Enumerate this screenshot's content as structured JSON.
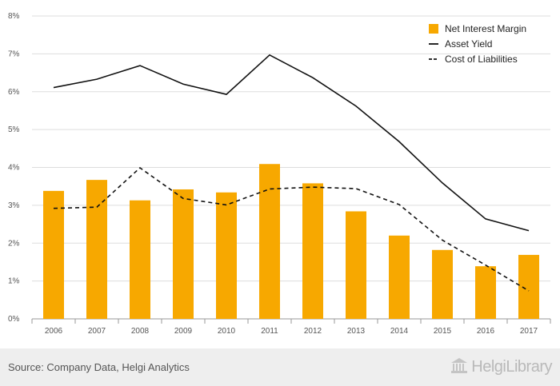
{
  "chart_data": {
    "type": "bar",
    "categories": [
      "2006",
      "2007",
      "2008",
      "2009",
      "2010",
      "2011",
      "2012",
      "2013",
      "2014",
      "2015",
      "2016",
      "2017"
    ],
    "series": [
      {
        "name": "Net Interest Margin",
        "kind": "bar",
        "color": "#f7a800",
        "values": [
          3.38,
          3.67,
          3.13,
          3.42,
          3.34,
          4.09,
          3.58,
          2.84,
          2.2,
          1.82,
          1.39,
          1.69
        ]
      },
      {
        "name": "Asset Yield",
        "kind": "line",
        "style": "solid",
        "color": "#111111",
        "values": [
          6.11,
          6.33,
          6.69,
          6.2,
          5.93,
          6.97,
          6.37,
          5.62,
          4.68,
          3.59,
          2.64,
          2.33
        ]
      },
      {
        "name": "Cost of Liabilities",
        "kind": "line",
        "style": "dashed",
        "color": "#111111",
        "values": [
          2.92,
          2.95,
          3.99,
          3.18,
          3.01,
          3.43,
          3.48,
          3.44,
          3.02,
          2.08,
          1.42,
          0.74
        ]
      }
    ],
    "yticks": [
      "0%",
      "1%",
      "2%",
      "3%",
      "4%",
      "5%",
      "6%",
      "7%",
      "8%"
    ],
    "ylim": [
      0,
      8
    ],
    "grid": true,
    "legend_position": "top-right"
  },
  "footer": {
    "source": "Source: Company Data, Helgi Analytics",
    "brand": "HelgiLibrary",
    "brand_icon": "library-building-icon"
  }
}
